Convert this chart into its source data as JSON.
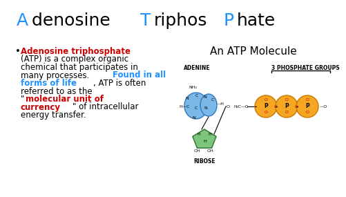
{
  "background_color": "#ffffff",
  "title_fontsize": 18,
  "bullet_fontsize": 8.5,
  "atp_title": "An ATP Molecule",
  "atp_title_fontsize": 11,
  "adenine_label": "ADENINE",
  "ribose_label": "RIBOSE",
  "phosphate_label": "3 PHOSPHATE GROUPS",
  "label_fontsize": 5.5,
  "adenine_color": "#7ab8e8",
  "ribose_color": "#7dc47d",
  "phosphate_color": "#f5a623",
  "red": "#cc0000",
  "blue": "#1e90ff",
  "black": "#000000"
}
